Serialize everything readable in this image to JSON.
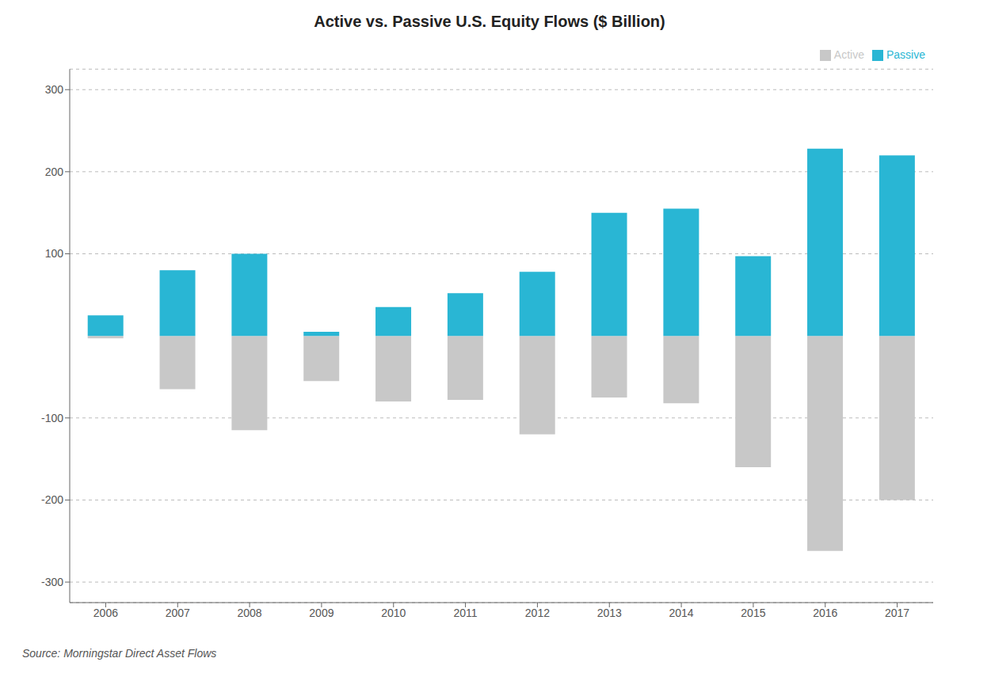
{
  "chart_data": {
    "type": "bar",
    "title": "Active vs. Passive U.S. Equity Flows ($ Billion)",
    "categories": [
      "2006",
      "2007",
      "2008",
      "2009",
      "2010",
      "2011",
      "2012",
      "2013",
      "2014",
      "2015",
      "2016",
      "2017"
    ],
    "series": [
      {
        "name": "Active",
        "color": "#c8c8c8",
        "values": [
          -3,
          -65,
          -115,
          -55,
          -80,
          -78,
          -120,
          -75,
          -82,
          -160,
          -262,
          -200
        ]
      },
      {
        "name": "Passive",
        "color": "#29b6d4",
        "values": [
          25,
          80,
          100,
          5,
          35,
          52,
          78,
          150,
          155,
          97,
          228,
          220
        ]
      }
    ],
    "ylim": [
      -325,
      325
    ],
    "yticks": [
      -300,
      -200,
      -100,
      100,
      200,
      300
    ],
    "grid": true,
    "legend": "upper right",
    "annotations": [
      "Source: Morningstar Direct Asset Flows"
    ]
  }
}
